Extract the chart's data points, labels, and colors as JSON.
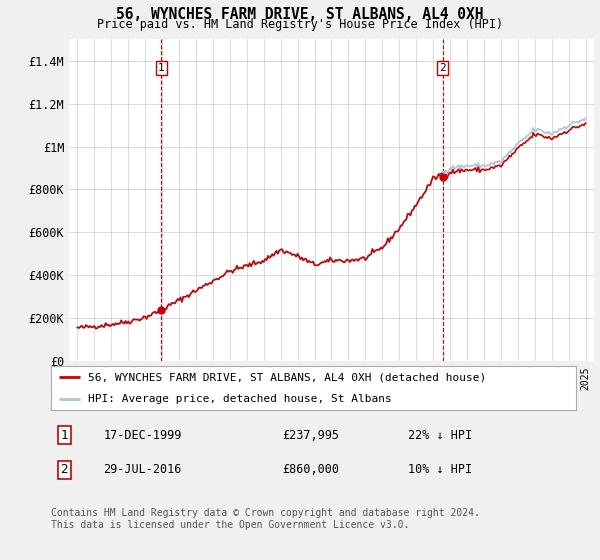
{
  "title": "56, WYNCHES FARM DRIVE, ST ALBANS, AL4 0XH",
  "subtitle": "Price paid vs. HM Land Registry's House Price Index (HPI)",
  "background_color": "#f0f0f0",
  "plot_bg_color": "#ffffff",
  "hpi_color": "#aac4dd",
  "sale_color": "#cc0000",
  "dashed_color": "#cc0000",
  "sale1_year": 1999.96,
  "sale1_price": 237995,
  "sale2_year": 2016.57,
  "sale2_price": 860000,
  "legend_sale": "56, WYNCHES FARM DRIVE, ST ALBANS, AL4 0XH (detached house)",
  "legend_hpi": "HPI: Average price, detached house, St Albans",
  "footer": "Contains HM Land Registry data © Crown copyright and database right 2024.\nThis data is licensed under the Open Government Licence v3.0.",
  "ylim": [
    0,
    1500000
  ],
  "yticks": [
    0,
    200000,
    400000,
    600000,
    800000,
    1000000,
    1200000,
    1400000
  ],
  "ytick_labels": [
    "£0",
    "£200K",
    "£400K",
    "£600K",
    "£800K",
    "£1M",
    "£1.2M",
    "£1.4M"
  ],
  "xmin": 1994.5,
  "xmax": 2025.5,
  "hpi_anchors": [
    [
      1995.0,
      155000
    ],
    [
      1996.0,
      163000
    ],
    [
      1997.0,
      172000
    ],
    [
      1998.0,
      185000
    ],
    [
      1999.0,
      205000
    ],
    [
      2000.0,
      240000
    ],
    [
      2001.0,
      285000
    ],
    [
      2002.0,
      330000
    ],
    [
      2003.0,
      375000
    ],
    [
      2004.0,
      420000
    ],
    [
      2005.0,
      445000
    ],
    [
      2006.0,
      470000
    ],
    [
      2007.0,
      520000
    ],
    [
      2008.0,
      490000
    ],
    [
      2009.0,
      450000
    ],
    [
      2010.0,
      470000
    ],
    [
      2011.0,
      470000
    ],
    [
      2012.0,
      480000
    ],
    [
      2013.0,
      530000
    ],
    [
      2014.0,
      620000
    ],
    [
      2015.0,
      730000
    ],
    [
      2016.0,
      850000
    ],
    [
      2017.0,
      900000
    ],
    [
      2018.0,
      910000
    ],
    [
      2019.0,
      910000
    ],
    [
      2020.0,
      930000
    ],
    [
      2021.0,
      1010000
    ],
    [
      2022.0,
      1080000
    ],
    [
      2023.0,
      1060000
    ],
    [
      2024.0,
      1100000
    ],
    [
      2025.0,
      1130000
    ]
  ]
}
